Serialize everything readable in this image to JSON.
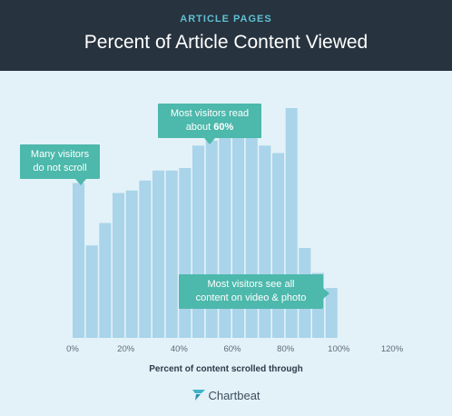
{
  "header": {
    "kicker": "ARTICLE PAGES",
    "title": "Percent of Article Content Viewed",
    "background": "#27333f",
    "kicker_color": "#5ec0d2"
  },
  "chart_data": {
    "type": "bar",
    "title": "Percent of Article Content Viewed",
    "xlabel": "Percent of content scrolled through",
    "ylabel": "",
    "x_ticks": [
      "0%",
      "20%",
      "40%",
      "60%",
      "80%",
      "100%",
      "120%"
    ],
    "xlim": [
      0,
      120
    ],
    "bin_width": 5,
    "ylim": [
      0,
      100
    ],
    "grid": false,
    "bar_color": "#a9d4ea",
    "values": [
      62,
      37,
      46,
      58,
      59,
      63,
      67,
      67,
      68,
      77,
      79,
      81,
      83,
      81,
      77,
      74,
      92,
      36,
      26,
      20
    ]
  },
  "callouts": {
    "left": {
      "line1": "Many visitors",
      "line2": "do not scroll"
    },
    "top": {
      "line1": "Most visitors read",
      "line2_prefix": "about ",
      "line2_bold": "60%"
    },
    "bottom": {
      "line1": "Most visitors see all",
      "line2": "content on video & photo"
    },
    "color": "#4db8ac"
  },
  "brand": {
    "name": "Chartbeat"
  }
}
